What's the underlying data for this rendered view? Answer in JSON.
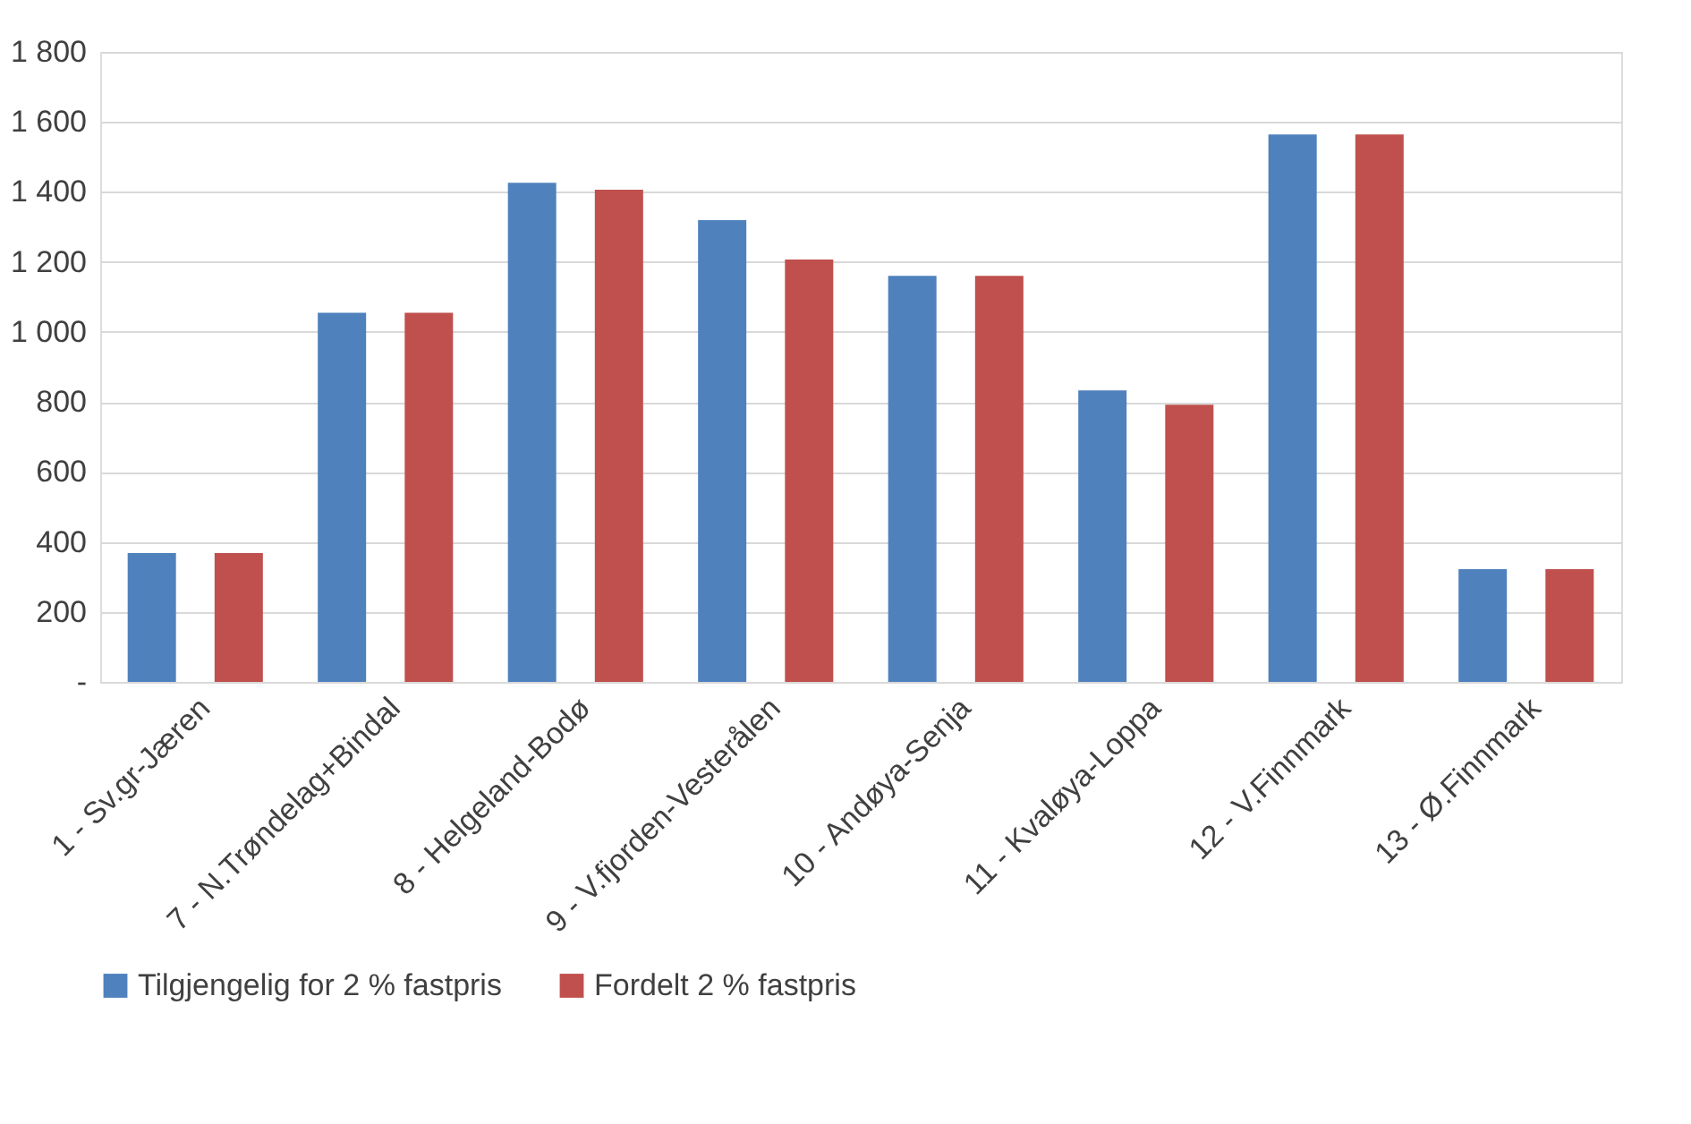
{
  "chart_data": {
    "type": "bar",
    "categories": [
      "1 - Sv.gr-Jæren",
      "7 - N.Trøndelag+Bindal",
      "8 - Helgeland-Bodø",
      "9 - V.fjorden-Vesterålen",
      "10 - Andøya-Senja",
      "11 - Kvaløya-Loppa",
      "12 - V.Finnmark",
      "13 - Ø.Finnmark"
    ],
    "series": [
      {
        "name": "Tilgjengelig for 2 % fastpris",
        "color": "#4f81bd",
        "values": [
          368,
          1055,
          1426,
          1319,
          1160,
          833,
          1564,
          322
        ]
      },
      {
        "name": "Fordelt 2 % fastpris",
        "color": "#c0504d",
        "values": [
          368,
          1055,
          1406,
          1207,
          1160,
          792,
          1564,
          322
        ]
      }
    ],
    "ylim": [
      0,
      1800
    ],
    "yticks": [
      {
        "value": 0,
        "label": "-"
      },
      {
        "value": 200,
        "label": "200"
      },
      {
        "value": 400,
        "label": "400"
      },
      {
        "value": 600,
        "label": "600"
      },
      {
        "value": 800,
        "label": "800"
      },
      {
        "value": 1000,
        "label": "1 000"
      },
      {
        "value": 1200,
        "label": "1 200"
      },
      {
        "value": 1400,
        "label": "1 400"
      },
      {
        "value": 1600,
        "label": "1 600"
      },
      {
        "value": 1800,
        "label": "1 800"
      }
    ],
    "grid": "y",
    "legend": "bottom"
  }
}
